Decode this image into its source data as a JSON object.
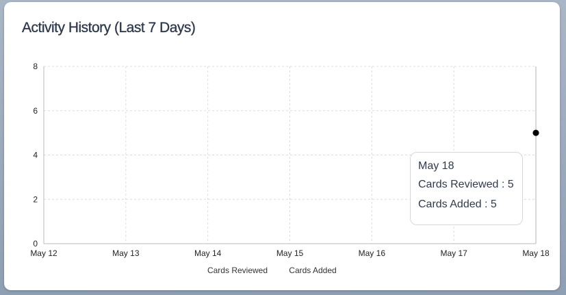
{
  "card": {
    "title": "Activity History (Last 7 Days)"
  },
  "chart_data": {
    "type": "line",
    "categories": [
      "May 12",
      "May 13",
      "May 14",
      "May 15",
      "May 16",
      "May 17",
      "May 18"
    ],
    "series": [
      {
        "name": "Cards Reviewed",
        "values": [
          null,
          null,
          null,
          null,
          null,
          null,
          5
        ]
      },
      {
        "name": "Cards Added",
        "values": [
          null,
          null,
          null,
          null,
          null,
          null,
          5
        ]
      }
    ],
    "y_ticks": [
      0,
      2,
      4,
      6,
      8
    ],
    "ylim": [
      0,
      8
    ],
    "grid": true,
    "legend_position": "bottom",
    "point_color": "#000000",
    "grid_color": "#dcdcdc",
    "cursor_color": "#cccccc"
  },
  "tooltip": {
    "date": "May 18",
    "reviewed": "Cards Reviewed : 5",
    "added": "Cards Added : 5"
  }
}
